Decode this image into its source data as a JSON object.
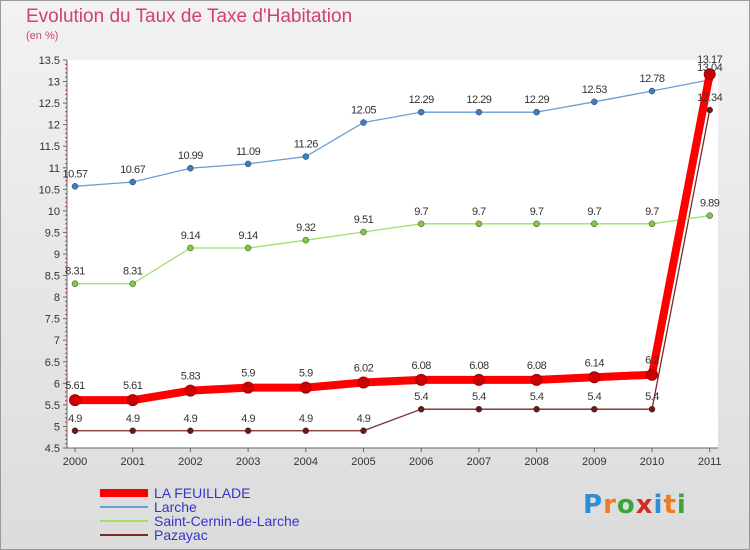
{
  "title": "Evolution du Taux de Taxe d'Habitation",
  "unit": "(en %)",
  "logo": "Proxiti",
  "chart_data": {
    "type": "line",
    "title": "Evolution du Taux de Taxe d'Habitation",
    "ylabel": "(en %)",
    "xlabel": "",
    "x": [
      "2000",
      "2001",
      "2002",
      "2003",
      "2004",
      "2005",
      "2006",
      "2007",
      "2008",
      "2009",
      "2010",
      "2011"
    ],
    "ylim": [
      4.5,
      13.5
    ],
    "yticks": [
      "4.5",
      "5",
      "5.5",
      "6",
      "6.5",
      "7",
      "7.5",
      "8",
      "8.5",
      "9",
      "9.5",
      "10",
      "10.5",
      "11",
      "11.5",
      "12",
      "12.5",
      "13",
      "13.5"
    ],
    "grid": false,
    "legend_position": "bottom-left",
    "series": [
      {
        "name": "LA FEUILLADE",
        "color": "#ff0000",
        "point_color": "#cc0000",
        "values": [
          5.61,
          5.61,
          5.83,
          5.9,
          5.9,
          6.02,
          6.08,
          6.08,
          6.08,
          6.14,
          6.2,
          13.17
        ],
        "labels": [
          "5.61",
          "5.61",
          "5.83",
          "5.9",
          "5.9",
          "6.02",
          "6.08",
          "6.08",
          "6.08",
          "6.14",
          "6.2",
          "13.17"
        ]
      },
      {
        "name": "Larche",
        "color": "#6a9fd4",
        "point_color": "#3a7fc4",
        "values": [
          10.57,
          10.67,
          10.99,
          11.09,
          11.26,
          12.05,
          12.29,
          12.29,
          12.29,
          12.53,
          12.78,
          13.04
        ],
        "labels": [
          "10.57",
          "10.67",
          "10.99",
          "11.09",
          "11.26",
          "12.05",
          "12.29",
          "12.29",
          "12.29",
          "12.53",
          "12.78",
          "13.04"
        ]
      },
      {
        "name": "Saint-Cernin-de-Larche",
        "color": "#9ee06a",
        "point_color": "#7ccc3c",
        "values": [
          8.31,
          8.31,
          9.14,
          9.14,
          9.32,
          9.51,
          9.7,
          9.7,
          9.7,
          9.7,
          9.7,
          9.89
        ],
        "labels": [
          "8.31",
          "8.31",
          "9.14",
          "9.14",
          "9.32",
          "9.51",
          "9.7",
          "9.7",
          "9.7",
          "9.7",
          "9.7",
          "9.89"
        ]
      },
      {
        "name": "Pazayac",
        "color": "#7a2a2a",
        "point_color": "#6a1a1a",
        "values": [
          4.9,
          4.9,
          4.9,
          4.9,
          4.9,
          4.9,
          5.4,
          5.4,
          5.4,
          5.4,
          5.4,
          12.34
        ],
        "labels": [
          "4.9",
          "4.9",
          "4.9",
          "4.9",
          "4.9",
          "4.9",
          "5.4",
          "5.4",
          "5.4",
          "5.4",
          "5.4",
          "12.34"
        ]
      }
    ]
  }
}
